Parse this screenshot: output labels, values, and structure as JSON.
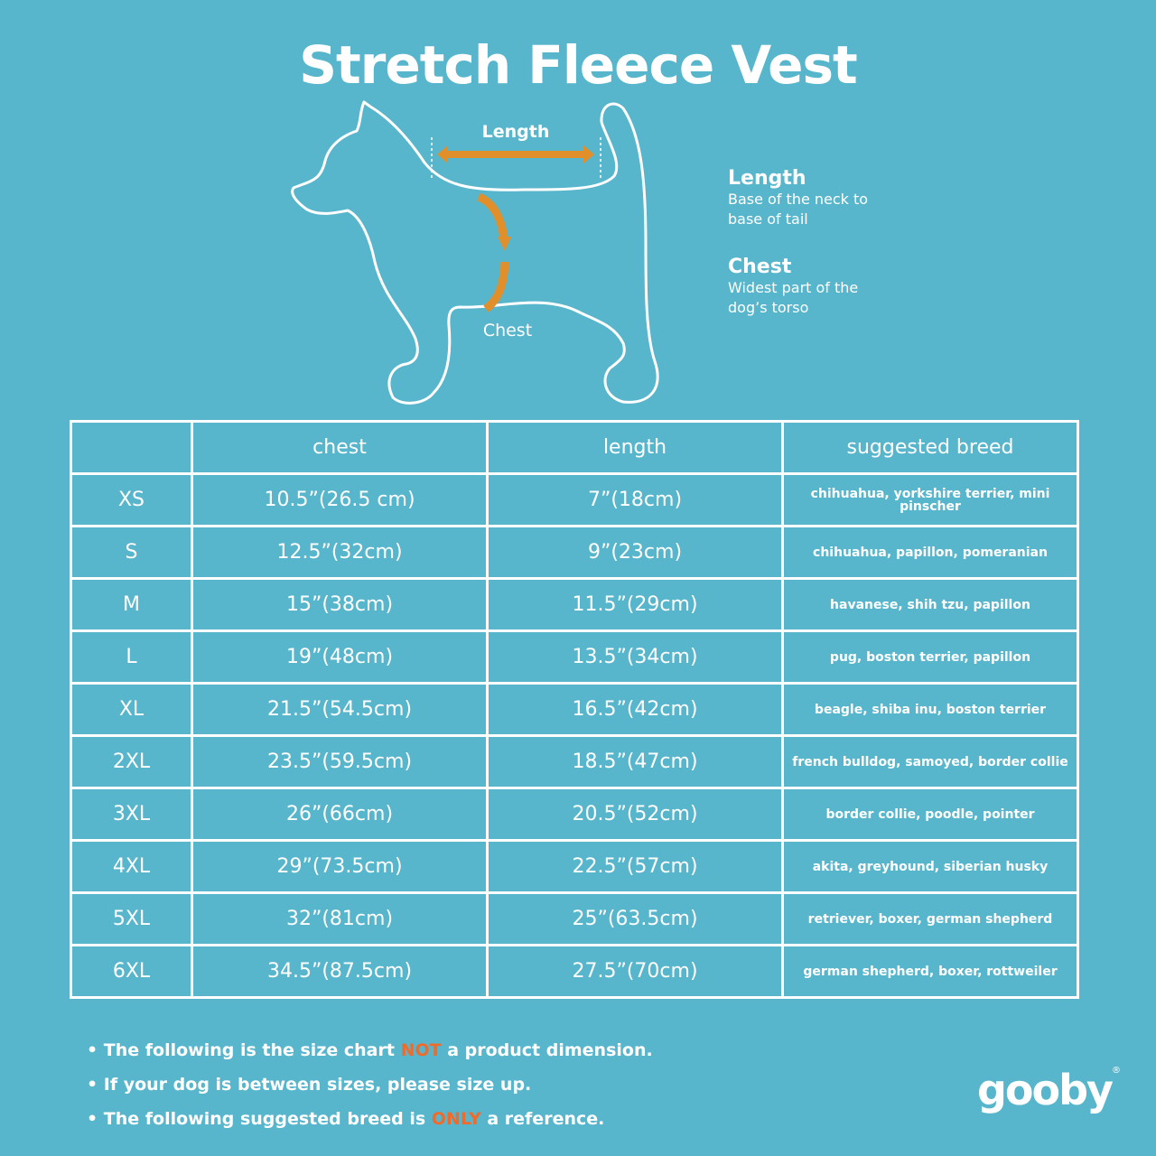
{
  "title": "Stretch Fleece Vest",
  "diagram": {
    "length_label": "Length",
    "chest_label": "Chest",
    "arrow_color": "#e08f2a"
  },
  "legend": [
    {
      "heading": "Length",
      "desc_line1": "Base of the neck to",
      "desc_line2": "base of tail"
    },
    {
      "heading": "Chest",
      "desc_line1": "Widest part of the",
      "desc_line2": "dog’s torso"
    }
  ],
  "table": {
    "headers": [
      "",
      "chest",
      "length",
      "suggested breed"
    ],
    "rows": [
      {
        "size": "XS",
        "chest": "10.5”(26.5 cm)",
        "length": "7”(18cm)",
        "breed": "chihuahua, yorkshire terrier, mini pinscher"
      },
      {
        "size": "S",
        "chest": "12.5”(32cm)",
        "length": "9”(23cm)",
        "breed": "chihuahua, papillon, pomeranian"
      },
      {
        "size": "M",
        "chest": "15”(38cm)",
        "length": "11.5”(29cm)",
        "breed": "havanese, shih tzu, papillon"
      },
      {
        "size": "L",
        "chest": "19”(48cm)",
        "length": "13.5”(34cm)",
        "breed": "pug, boston terrier, papillon"
      },
      {
        "size": "XL",
        "chest": "21.5”(54.5cm)",
        "length": "16.5”(42cm)",
        "breed": "beagle, shiba inu, boston terrier"
      },
      {
        "size": "2XL",
        "chest": "23.5”(59.5cm)",
        "length": "18.5”(47cm)",
        "breed": "french bulldog, samoyed, border collie"
      },
      {
        "size": "3XL",
        "chest": "26”(66cm)",
        "length": "20.5”(52cm)",
        "breed": "border collie, poodle, pointer"
      },
      {
        "size": "4XL",
        "chest": "29”(73.5cm)",
        "length": "22.5”(57cm)",
        "breed": "akita, greyhound, siberian husky"
      },
      {
        "size": "5XL",
        "chest": "32”(81cm)",
        "length": "25”(63.5cm)",
        "breed": "retriever, boxer, german shepherd"
      },
      {
        "size": "6XL",
        "chest": "34.5”(87.5cm)",
        "length": "27.5”(70cm)",
        "breed": "german shepherd, boxer, rottweiler"
      }
    ]
  },
  "notes": [
    {
      "before": "• The following is  the size chart ",
      "highlight": "NOT",
      "after": " a product dimension."
    },
    {
      "before": "• If your dog is between sizes, please size up.",
      "highlight": "",
      "after": ""
    },
    {
      "before": "• The following suggested breed is ",
      "highlight": "ONLY",
      "after": " a reference."
    }
  ],
  "highlight_color": "#f26a2a",
  "background_color": "#58b6cc",
  "logo": {
    "text": "gooby",
    "mark": "®"
  }
}
